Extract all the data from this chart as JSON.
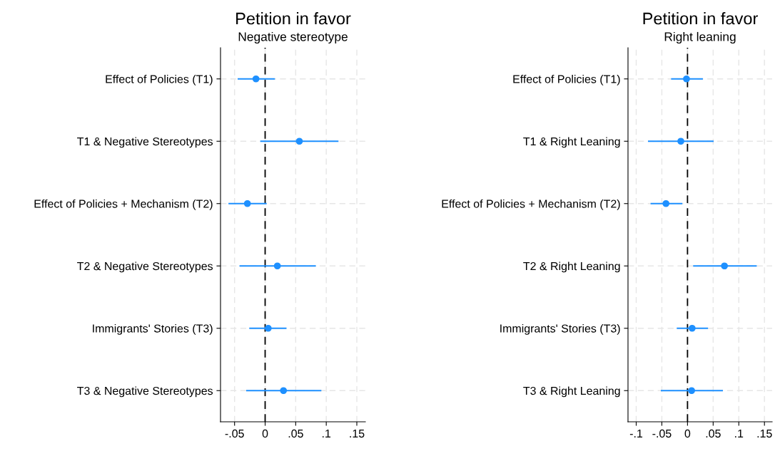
{
  "chart_data": [
    {
      "type": "scatter",
      "orientation": "horizontal",
      "title": "Petition in favor",
      "subtitle": "Negative stereotype",
      "categories": [
        "Effect of Policies (T1)",
        "T1 & Negative Stereotypes",
        "Effect of Policies + Mechanism (T2)",
        "T2 & Negative Stereotypes",
        "Immigrants' Stories (T3)",
        "T3 & Negative Stereotypes"
      ],
      "series": [
        {
          "color": "#1e90ff",
          "values": [
            -0.015,
            0.056,
            -0.029,
            0.02,
            0.005,
            0.03
          ],
          "errors": [
            [
              -0.045,
              0.016
            ],
            [
              -0.008,
              0.12
            ],
            [
              -0.06,
              0.0025
            ],
            [
              -0.042,
              0.083
            ],
            [
              -0.026,
              0.035
            ],
            [
              -0.031,
              0.092
            ]
          ]
        }
      ],
      "xlim": [
        -0.073,
        0.164
      ],
      "xticks": [
        {
          "value": -0.05,
          "label": "-.05"
        },
        0,
        {
          "value": 0.05,
          "label": ".05"
        },
        {
          "value": 0.1,
          "label": ".1"
        },
        {
          "value": 0.15,
          "label": ".15"
        }
      ],
      "ref_lines": [
        {
          "axis": "x",
          "value": 0,
          "color": "#000000",
          "line_style": "dashed"
        }
      ],
      "grid": true,
      "marker": "circle"
    },
    {
      "type": "scatter",
      "orientation": "horizontal",
      "title": "Petition in favor",
      "subtitle": "Right leaning",
      "categories": [
        "Effect of Policies (T1)",
        "T1 & Right Leaning",
        "Effect of Policies + Mechanism (T2)",
        "T2 & Right Leaning",
        "Immigrants' Stories (T3)",
        "T3 & Right Leaning"
      ],
      "series": [
        {
          "color": "#1e90ff",
          "values": [
            -0.002,
            -0.013,
            -0.042,
            0.072,
            0.009,
            0.008
          ],
          "errors": [
            [
              -0.032,
              0.03
            ],
            [
              -0.077,
              0.051
            ],
            [
              -0.072,
              -0.01
            ],
            [
              0.011,
              0.135
            ],
            [
              -0.021,
              0.04
            ],
            [
              -0.052,
              0.069
            ]
          ]
        }
      ],
      "xlim": [
        -0.116,
        0.165
      ],
      "xticks": [
        {
          "value": -0.1,
          "label": "-.1"
        },
        {
          "value": -0.05,
          "label": "-.05"
        },
        0,
        {
          "value": 0.05,
          "label": ".05"
        },
        {
          "value": 0.1,
          "label": ".1"
        },
        {
          "value": 0.15,
          "label": ".15"
        }
      ],
      "ref_lines": [
        {
          "axis": "x",
          "value": 0,
          "color": "#000000",
          "line_style": "dashed"
        }
      ],
      "grid": true,
      "marker": "circle"
    }
  ]
}
